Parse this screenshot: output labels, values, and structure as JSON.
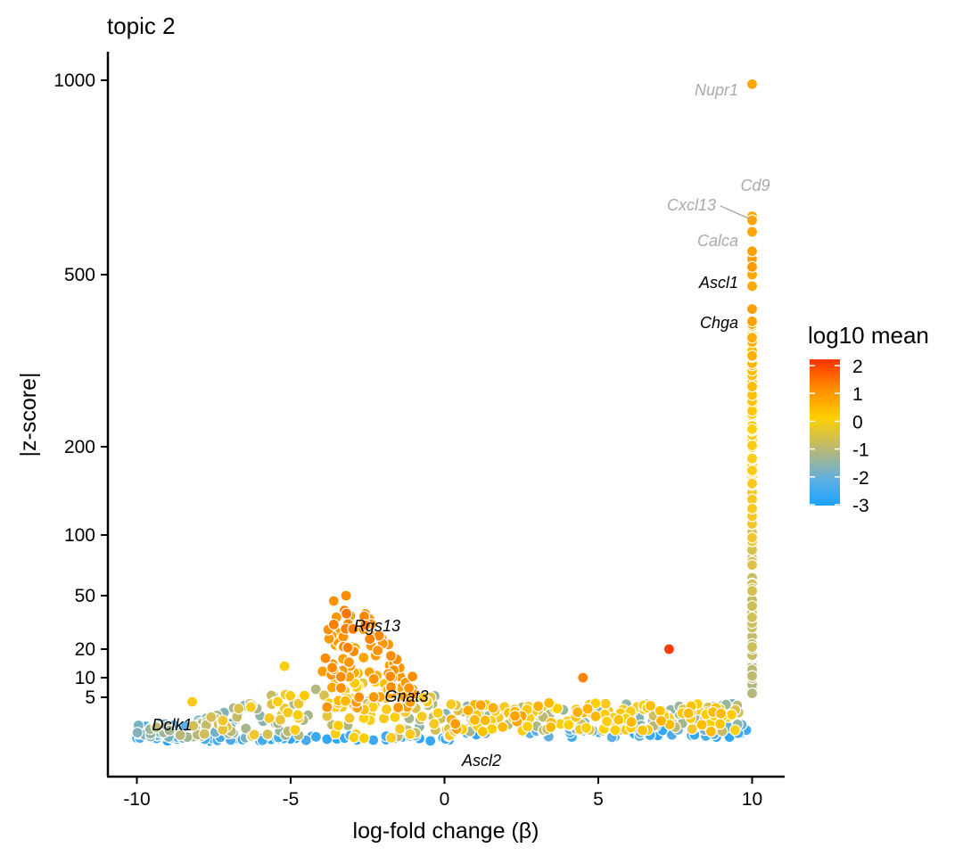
{
  "chart_data": {
    "type": "scatter",
    "title": "topic 2",
    "xlabel": "log-fold change (β)",
    "ylabel": "|z-score|",
    "xlim": [
      -11,
      11
    ],
    "ylim": [
      0,
      1060
    ],
    "y_scale": "compressed (nonlinear)",
    "x_ticks": [
      -10,
      -5,
      0,
      5,
      10
    ],
    "x_tick_labels": [
      "-10",
      "-5",
      "0",
      "5",
      "10"
    ],
    "y_ticks": [
      5,
      10,
      20,
      50,
      100,
      200,
      500,
      1000
    ],
    "y_tick_labels": [
      "5",
      "10",
      "20",
      "50",
      "100",
      "200",
      "500",
      "1000"
    ],
    "grid": false,
    "legend": {
      "title": "log10 mean",
      "placement": "right",
      "ticks": [
        2,
        1,
        0,
        -1,
        -2,
        -3
      ],
      "tick_labels": [
        "2",
        "1",
        "0",
        "-1",
        "-2",
        "-3"
      ],
      "colors": [
        "#ff3300",
        "#ff8c00",
        "#ffd000",
        "#b8b878",
        "#5fb0e0",
        "#1aa3ff"
      ]
    },
    "annotations": [
      {
        "label": "Nupr1",
        "x": 10,
        "y": 990,
        "color": "#aaaaaa"
      },
      {
        "label": "Cd9",
        "x": 10,
        "y": 655,
        "color": "#aaaaaa"
      },
      {
        "label": "Cxcl13",
        "x": 10,
        "y": 620,
        "color": "#aaaaaa"
      },
      {
        "label": "Calca",
        "x": 10,
        "y": 555,
        "color": "#aaaaaa"
      },
      {
        "label": "Ascl1",
        "x": 10,
        "y": 485,
        "color": "#000000"
      },
      {
        "label": "Chga",
        "x": 10,
        "y": 415,
        "color": "#000000"
      },
      {
        "label": "Rgs13",
        "x": -2.8,
        "y": 28,
        "color": "#000000"
      },
      {
        "label": "Gnat3",
        "x": -2.3,
        "y": 5,
        "color": "#000000"
      },
      {
        "label": "Dclk1",
        "x": -9.7,
        "y": 1.3,
        "color": "#000000"
      },
      {
        "label": "Ascl2",
        "x": 0.3,
        "y": 0.1,
        "color": "#000000"
      }
    ],
    "highlighted_points": [
      {
        "x": 10,
        "y": 990,
        "lm": 0.6
      },
      {
        "x": 7.3,
        "y": 20,
        "lm": 1.9
      },
      {
        "x": 4.5,
        "y": 10,
        "lm": 1.1
      },
      {
        "x": -8.2,
        "y": 4.5,
        "lm": -0.3
      },
      {
        "x": -3.6,
        "y": 47,
        "lm": 0.9
      },
      {
        "x": -3.2,
        "y": 50,
        "lm": 1.0
      },
      {
        "x": -5.2,
        "y": 14,
        "lm": -0.2
      }
    ]
  }
}
